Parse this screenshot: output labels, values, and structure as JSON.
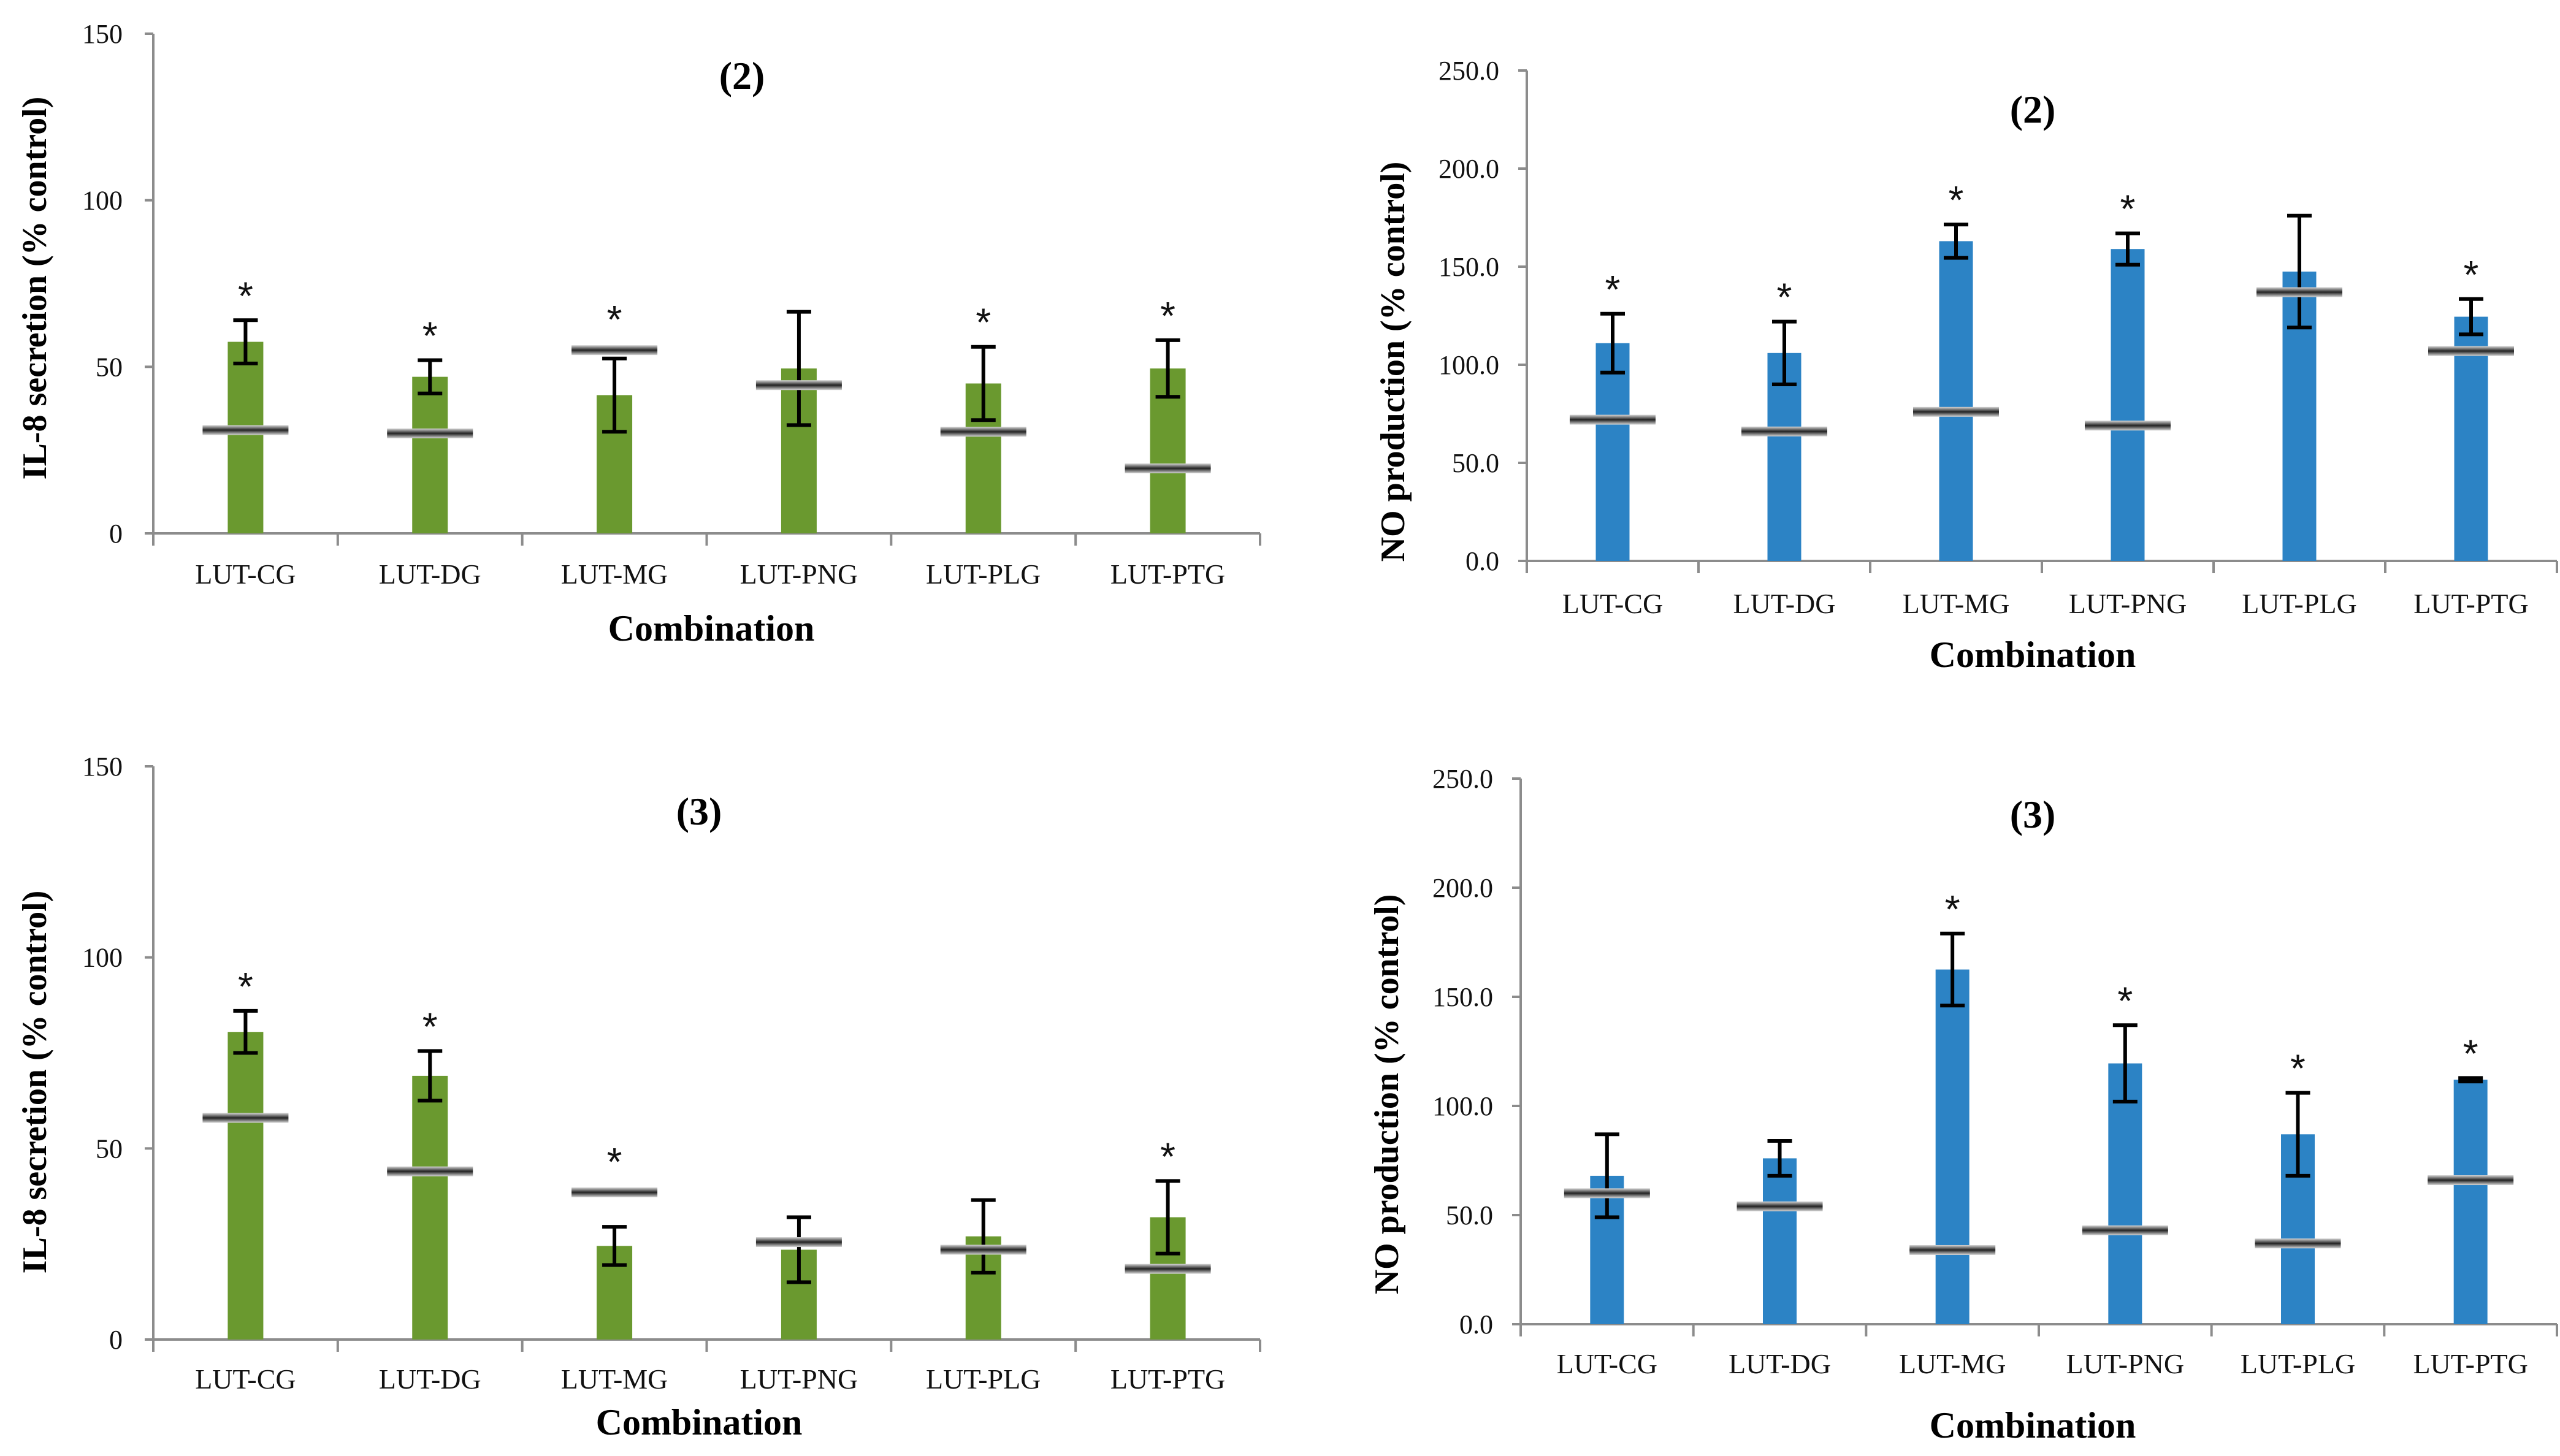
{
  "chart_data": [
    {
      "type": "bar",
      "title": "(2)",
      "xlabel": "Combination",
      "ylabel": "IL-8 secretion (% control)",
      "ylim": [
        0,
        150
      ],
      "yticks": [
        "0",
        "50",
        "100",
        "150"
      ],
      "categories": [
        "LUT-CG",
        "LUT-DG",
        "LUT-MG",
        "LUT-PNG",
        "LUT-PLG",
        "LUT-PTG"
      ],
      "values": [
        57.5,
        47,
        41.5,
        49.5,
        45,
        49.5
      ],
      "error": [
        6.5,
        5,
        11,
        17,
        11,
        8.5
      ],
      "reference_lines": [
        31,
        30,
        55,
        44.5,
        30.5,
        19.5
      ],
      "significance": [
        "*",
        "*",
        "*",
        "",
        "*",
        "*"
      ],
      "color": "#6a992f"
    },
    {
      "type": "bar",
      "title": "(2)",
      "xlabel": "Combination",
      "ylabel": "NO production (% control)",
      "ylim": [
        0,
        250
      ],
      "yticks": [
        "0.0",
        "50.0",
        "100.0",
        "150.0",
        "200.0",
        "250.0"
      ],
      "categories": [
        "LUT-CG",
        "LUT-DG",
        "LUT-MG",
        "LUT-PNG",
        "LUT-PLG",
        "LUT-PTG"
      ],
      "values": [
        111,
        106,
        163,
        159,
        147.5,
        124.5
      ],
      "error": [
        15,
        16,
        8.5,
        8,
        28.5,
        9
      ],
      "reference_lines": [
        72,
        66,
        76,
        69,
        137,
        107
      ],
      "significance": [
        "*",
        "*",
        "*",
        "*",
        "",
        "*"
      ],
      "color": "#2c83c5"
    },
    {
      "type": "bar",
      "title": "(3)",
      "xlabel": "Combination",
      "ylabel": "IL-8 secretion (% control)",
      "ylim": [
        0,
        150
      ],
      "yticks": [
        "0",
        "50",
        "100",
        "150"
      ],
      "categories": [
        "LUT-CG",
        "LUT-DG",
        "LUT-MG",
        "LUT-PNG",
        "LUT-PLG",
        "LUT-PTG"
      ],
      "values": [
        80.5,
        69,
        24.5,
        23.5,
        27,
        32
      ],
      "error": [
        5.5,
        6.5,
        5,
        8.5,
        9.5,
        9.5
      ],
      "reference_lines": [
        58,
        44,
        38.5,
        25.5,
        23.5,
        18.5
      ],
      "significance": [
        "*",
        "*",
        "*",
        "",
        "",
        "*"
      ],
      "color": "#6a992f"
    },
    {
      "type": "bar",
      "title": "(3)",
      "xlabel": "Combination",
      "ylabel": "NO production (% control)",
      "ylim": [
        0,
        250
      ],
      "yticks": [
        "0.0",
        "50.0",
        "100.0",
        "150.0",
        "200.0",
        "250.0"
      ],
      "categories": [
        "LUT-CG",
        "LUT-DG",
        "LUT-MG",
        "LUT-PNG",
        "LUT-PLG",
        "LUT-PTG"
      ],
      "values": [
        68,
        76,
        162.5,
        119.5,
        87,
        112
      ],
      "error": [
        19,
        8,
        16.5,
        17.5,
        19,
        0.8
      ],
      "reference_lines": [
        60,
        54,
        34,
        43,
        37,
        66
      ],
      "significance": [
        "",
        "",
        "*",
        "*",
        "*",
        "*"
      ],
      "color": "#2c83c5"
    }
  ]
}
